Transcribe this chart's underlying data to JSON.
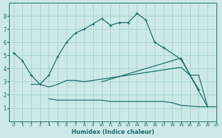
{
  "xlabel": "Humidex (Indice chaleur)",
  "bg_color": "#cce8e8",
  "line_color": "#1a6b6b",
  "grid_color": "#9ecece",
  "xlim": [
    -0.5,
    23
  ],
  "ylim": [
    0,
    9
  ],
  "xticks": [
    0,
    1,
    2,
    3,
    4,
    5,
    6,
    7,
    8,
    9,
    10,
    11,
    12,
    13,
    14,
    15,
    16,
    17,
    18,
    19,
    20,
    21,
    22,
    23
  ],
  "yticks": [
    1,
    2,
    3,
    4,
    5,
    6,
    7,
    8
  ],
  "line1_x": [
    0,
    1,
    2,
    3,
    4,
    5,
    6,
    7,
    8,
    9,
    10,
    11,
    12,
    13,
    14,
    15,
    16,
    17,
    19,
    21
  ],
  "line1_y": [
    5.2,
    4.6,
    3.5,
    2.8,
    3.5,
    4.9,
    6.0,
    6.7,
    7.0,
    7.4,
    7.8,
    7.3,
    7.5,
    7.5,
    8.2,
    7.7,
    6.0,
    5.6,
    4.7,
    2.4
  ],
  "line2_x": [
    2,
    3,
    4,
    5,
    6,
    7,
    8,
    9,
    10,
    11,
    12,
    13,
    14,
    15,
    16,
    17,
    18,
    19,
    20,
    21,
    22
  ],
  "line2_y": [
    2.8,
    2.8,
    2.6,
    2.8,
    3.1,
    3.1,
    3.0,
    3.1,
    3.2,
    3.3,
    3.4,
    3.5,
    3.6,
    3.7,
    3.8,
    3.9,
    4.0,
    4.1,
    3.5,
    3.5,
    1.1
  ],
  "line3_x": [
    4,
    5,
    6,
    7,
    8,
    9,
    10,
    11,
    12,
    13,
    14,
    15,
    16,
    17,
    18,
    19,
    21,
    22,
    23
  ],
  "line3_y": [
    1.7,
    1.6,
    1.6,
    1.6,
    1.6,
    1.6,
    1.6,
    1.5,
    1.5,
    1.5,
    1.5,
    1.5,
    1.5,
    1.5,
    1.4,
    1.2,
    1.1,
    1.1,
    1.1
  ],
  "line4_x": [
    10,
    11,
    12,
    13,
    14,
    15,
    16,
    17,
    18,
    19,
    20,
    22
  ],
  "line4_y": [
    3.0,
    3.2,
    3.4,
    3.6,
    3.8,
    4.0,
    4.2,
    4.4,
    4.6,
    4.8,
    3.5,
    1.1
  ]
}
